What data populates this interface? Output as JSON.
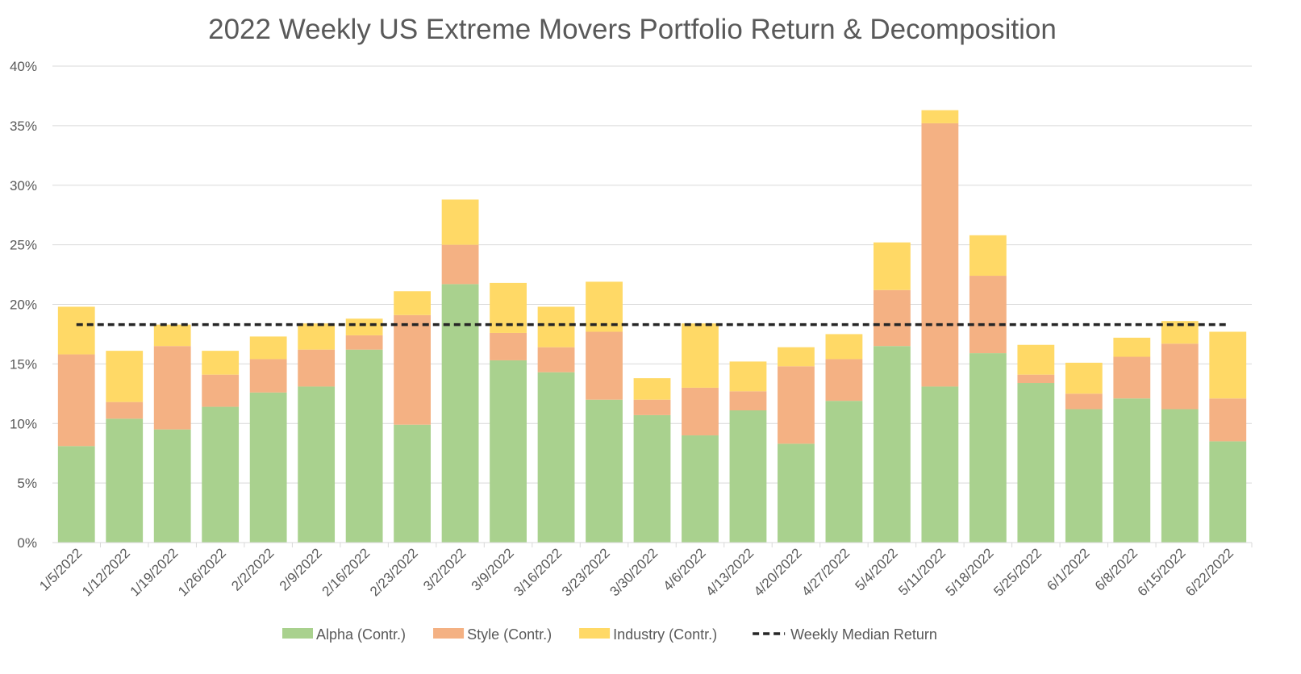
{
  "chart_data": {
    "type": "bar",
    "stacked": true,
    "title": "2022 Weekly US Extreme Movers Portfolio Return & Decomposition",
    "xlabel": "",
    "ylabel": "",
    "ylim": [
      0,
      40
    ],
    "y_ticks": [
      "0%",
      "5%",
      "10%",
      "15%",
      "20%",
      "25%",
      "30%",
      "35%",
      "40%"
    ],
    "grid": true,
    "legend_position": "bottom",
    "categories": [
      "1/5/2022",
      "1/12/2022",
      "1/19/2022",
      "1/26/2022",
      "2/2/2022",
      "2/9/2022",
      "2/16/2022",
      "2/23/2022",
      "3/2/2022",
      "3/9/2022",
      "3/16/2022",
      "3/23/2022",
      "3/30/2022",
      "4/6/2022",
      "4/13/2022",
      "4/20/2022",
      "4/27/2022",
      "5/4/2022",
      "5/11/2022",
      "5/18/2022",
      "5/25/2022",
      "6/1/2022",
      "6/8/2022",
      "6/15/2022",
      "6/22/2022"
    ],
    "series": [
      {
        "name": "Alpha (Contr.)",
        "color": "#A9D18E",
        "values": [
          8.1,
          10.4,
          9.5,
          11.4,
          12.6,
          13.1,
          16.2,
          9.9,
          21.7,
          15.3,
          14.3,
          12.0,
          10.7,
          9.0,
          11.1,
          8.3,
          11.9,
          16.5,
          13.1,
          15.9,
          13.4,
          11.2,
          12.1,
          11.2,
          8.5
        ]
      },
      {
        "name": "Style (Contr.)",
        "color": "#F4B183",
        "values": [
          7.7,
          1.4,
          7.0,
          2.7,
          2.8,
          3.1,
          1.2,
          9.2,
          3.3,
          2.3,
          2.1,
          5.7,
          1.3,
          4.0,
          1.6,
          6.5,
          3.5,
          4.7,
          22.1,
          6.5,
          0.7,
          1.3,
          3.5,
          5.5,
          3.6
        ]
      },
      {
        "name": "Industry (Contr.)",
        "color": "#FFD966",
        "values": [
          4.0,
          4.3,
          1.8,
          2.0,
          1.9,
          2.2,
          1.4,
          2.0,
          3.8,
          4.2,
          3.4,
          4.2,
          1.8,
          5.4,
          2.5,
          1.6,
          2.1,
          4.0,
          1.1,
          3.4,
          2.5,
          2.6,
          1.6,
          1.9,
          5.6
        ]
      }
    ],
    "lines": [
      {
        "name": "Weekly Median Return",
        "color": "#262626",
        "style": "dashed",
        "value": 18.3
      }
    ]
  }
}
